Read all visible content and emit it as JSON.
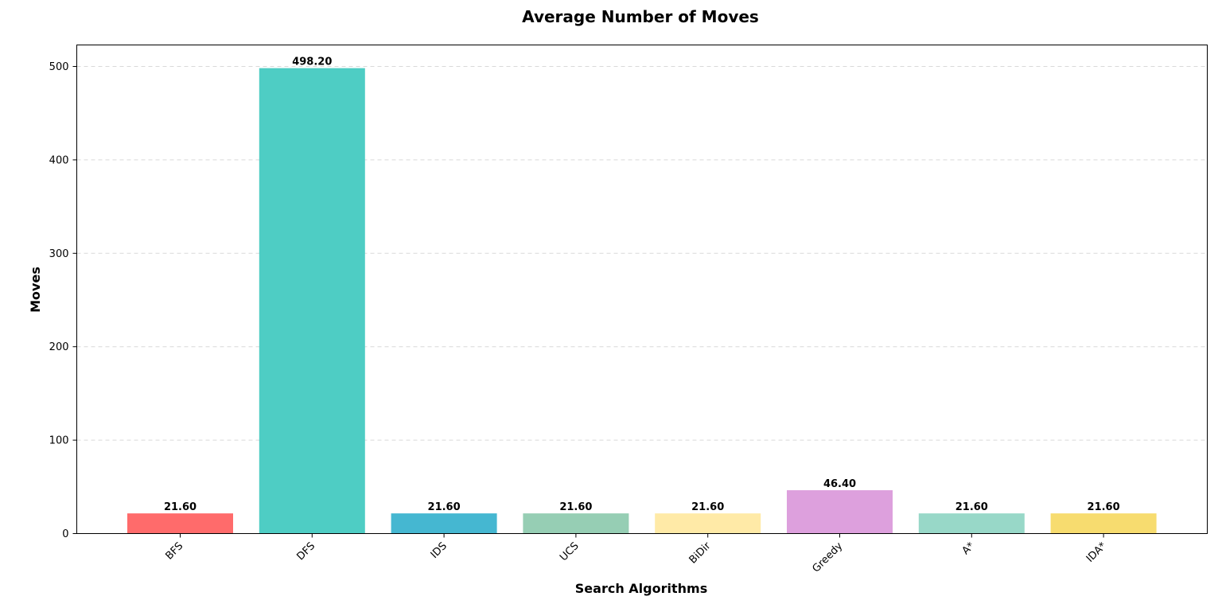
{
  "chart_data": {
    "type": "bar",
    "title": "Average Number of Moves",
    "xlabel": "Search Algorithms",
    "ylabel": "Moves",
    "categories": [
      "BFS",
      "DFS",
      "IDS",
      "UCS",
      "BiDir",
      "Greedy",
      "A*",
      "IDA*"
    ],
    "values": [
      21.6,
      498.2,
      21.6,
      21.6,
      21.6,
      46.4,
      21.6,
      21.6
    ],
    "value_labels": [
      "21.60",
      "498.20",
      "21.60",
      "21.60",
      "21.60",
      "46.40",
      "21.60",
      "21.60"
    ],
    "colors": [
      "#FF6B6B",
      "#4ECDC4",
      "#45B7D1",
      "#96CEB4",
      "#FFEAA7",
      "#DDA0DD",
      "#98D8C8",
      "#F7DC6F"
    ],
    "ylim": [
      0,
      523
    ],
    "yticks": [
      0,
      100,
      200,
      300,
      400,
      500
    ],
    "grid": "y-dashed",
    "legend": "none"
  }
}
